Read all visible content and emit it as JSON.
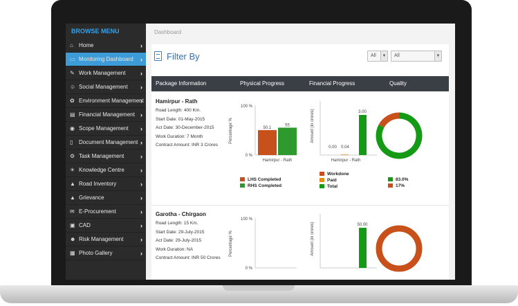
{
  "sidebar": {
    "title": "BROWSE MENU",
    "items": [
      {
        "label": "Home",
        "icon": "home-icon",
        "glyph": "⌂"
      },
      {
        "label": "Monitoring Dashboard",
        "icon": "monitor-icon",
        "glyph": "▭"
      },
      {
        "label": "Work Management",
        "icon": "hammer-icon",
        "glyph": "✎"
      },
      {
        "label": "Social Management",
        "icon": "people-icon",
        "glyph": "☺"
      },
      {
        "label": "Environment Management",
        "icon": "leaf-icon",
        "glyph": "✿"
      },
      {
        "label": "Financial Management",
        "icon": "money-icon",
        "glyph": "▤"
      },
      {
        "label": "Scope Management",
        "icon": "globe-icon",
        "glyph": "◉"
      },
      {
        "label": "Document Management",
        "icon": "document-icon",
        "glyph": "▯"
      },
      {
        "label": "Task Management",
        "icon": "gear-icon",
        "glyph": "⚙"
      },
      {
        "label": "Knowledge Centre",
        "icon": "lightbulb-icon",
        "glyph": "☀"
      },
      {
        "label": "Road Inventory",
        "icon": "road-icon",
        "glyph": "▲"
      },
      {
        "label": "Grievance",
        "icon": "alert-icon",
        "glyph": "▲"
      },
      {
        "label": "E-Procurement",
        "icon": "cart-icon",
        "glyph": "✉"
      },
      {
        "label": "CAD",
        "icon": "printer-icon",
        "glyph": "▣"
      },
      {
        "label": "Risk Management",
        "icon": "users-icon",
        "glyph": "☻"
      },
      {
        "label": "Photo Gallery",
        "icon": "photo-icon",
        "glyph": "▦"
      }
    ],
    "active_index": 1
  },
  "breadcrumb": "Dashboard",
  "filter": {
    "title": "Filter By",
    "select1": "All",
    "select2": "All"
  },
  "table": {
    "headers": [
      "Package Information",
      "Physical Progress",
      "Financial Progress",
      "Quality"
    ]
  },
  "colors": {
    "lhs": "#c8501a",
    "rhs": "#2e9a2e",
    "workdone": "#c8501a",
    "paid": "#e88a1e",
    "total": "#159a15",
    "sidebar_active": "#3d9bd8",
    "header_bg": "#3a3f45"
  },
  "packages": [
    {
      "name": "Hamirpur - Rath",
      "details": [
        "Road Length: 400 Km.",
        "Start Date: 01-May-2015",
        "Act Date: 30-December-2015",
        "Work Duration: 7 Month",
        "Contract Amount: INR 3 Crores"
      ],
      "physical": {
        "ylabel": "Percentage %",
        "yticks": [
          "100 %",
          "0 %"
        ],
        "category": "Hamirpur - Rath",
        "series": [
          {
            "name": "LHS Completed",
            "value": 50.1
          },
          {
            "name": "RHS Completed",
            "value": 55
          }
        ],
        "ymax": 100
      },
      "financial": {
        "ylabel": "Amount (in crores)",
        "category": "Hamirpur - Rath",
        "series": [
          {
            "name": "Workdone",
            "value": 0.0
          },
          {
            "name": "Paid",
            "value": 0.04
          },
          {
            "name": "Total",
            "value": 3.0
          }
        ],
        "value_labels": [
          "0.00",
          "0.04",
          "3.00"
        ],
        "ymax": 3.0
      },
      "quality": {
        "slices": [
          {
            "label": "83.0%",
            "value": 83.0,
            "color": "#159a15"
          },
          {
            "label": "17%",
            "value": 17,
            "color": "#c8501a"
          }
        ]
      }
    },
    {
      "name": "Garotha - Chirgaon",
      "details": [
        "Road Length: 15 Km.",
        "Start Date: 29-July-2015",
        "Act Date: 29-July-2015",
        "Work Duration: NA",
        "Contract Amount: INR 50 Crores"
      ],
      "physical": {
        "ylabel": "Percentage %",
        "yticks": [
          "100 %",
          "0 %"
        ],
        "category": "",
        "series": [],
        "ymax": 100
      },
      "financial": {
        "ylabel": "Amount (in crores)",
        "category": "",
        "series": [
          {
            "name": "Workdone",
            "value": 0
          },
          {
            "name": "Paid",
            "value": 0
          },
          {
            "name": "Total",
            "value": 50.0
          }
        ],
        "value_labels": [
          "",
          "",
          "50.00"
        ],
        "ymax": 50.0
      },
      "quality": {
        "slices": [
          {
            "label": "",
            "value": 100,
            "color": "#c8501a"
          }
        ]
      }
    }
  ],
  "chart_data": [
    {
      "type": "bar",
      "title": "",
      "ylabel": "Percentage %",
      "categories": [
        "Hamirpur - Rath"
      ],
      "series": [
        {
          "name": "LHS Completed",
          "values": [
            50.1
          ]
        },
        {
          "name": "RHS Completed",
          "values": [
            55
          ]
        }
      ],
      "ylim": [
        0,
        100
      ]
    },
    {
      "type": "bar",
      "title": "",
      "ylabel": "Amount (in crores)",
      "categories": [
        "Hamirpur - Rath"
      ],
      "series": [
        {
          "name": "Workdone",
          "values": [
            0.0
          ]
        },
        {
          "name": "Paid",
          "values": [
            0.04
          ]
        },
        {
          "name": "Total",
          "values": [
            3.0
          ]
        }
      ]
    },
    {
      "type": "pie",
      "title": "",
      "slices": [
        {
          "label": "83.0%",
          "value": 83.0
        },
        {
          "label": "17%",
          "value": 17
        }
      ]
    },
    {
      "type": "bar",
      "title": "",
      "ylabel": "Amount (in crores)",
      "categories": [
        ""
      ],
      "series": [
        {
          "name": "Total",
          "values": [
            50.0
          ]
        }
      ]
    }
  ]
}
